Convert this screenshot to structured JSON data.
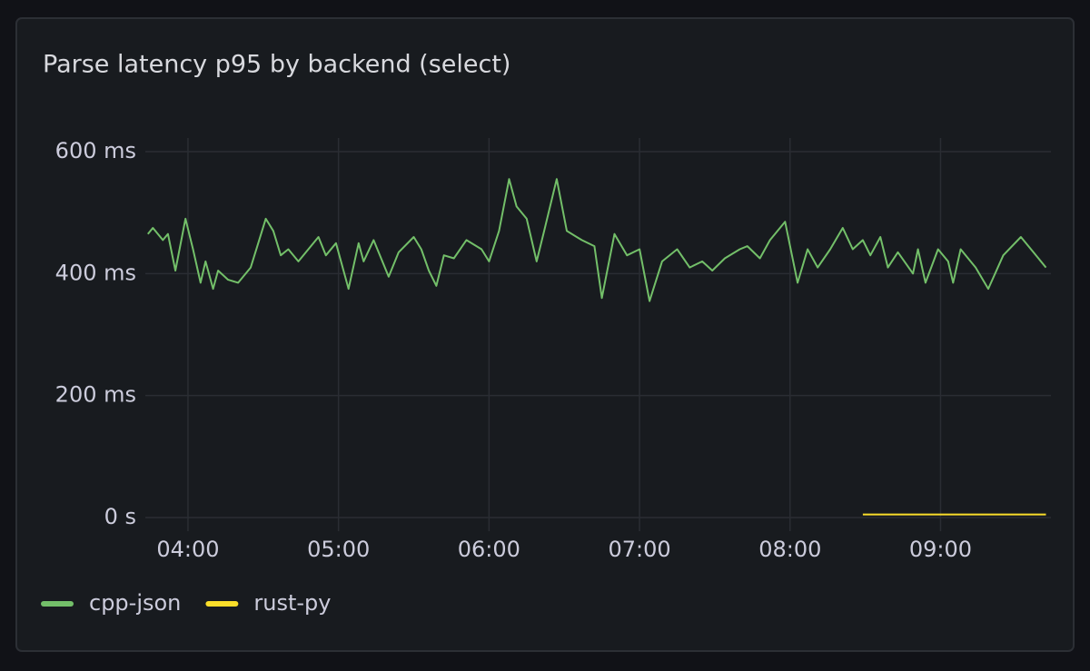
{
  "chart_data": {
    "type": "line",
    "title": "Parse latency p95 by backend (select)",
    "x": [
      "03:44",
      "03:46",
      "03:50",
      "03:52",
      "03:55",
      "03:59",
      "04:02",
      "04:05",
      "04:07",
      "04:10",
      "04:12",
      "04:16",
      "04:20",
      "04:25",
      "04:28",
      "04:31",
      "04:34",
      "04:37",
      "04:40",
      "04:44",
      "04:48",
      "04:52",
      "04:55",
      "04:59",
      "05:04",
      "05:08",
      "05:10",
      "05:14",
      "05:20",
      "05:24",
      "05:30",
      "05:33",
      "05:36",
      "05:39",
      "05:42",
      "05:46",
      "05:51",
      "05:57",
      "06:00",
      "06:04",
      "06:08",
      "06:11",
      "06:15",
      "06:19",
      "06:22",
      "06:27",
      "06:31",
      "06:37",
      "06:42",
      "06:45",
      "06:50",
      "06:55",
      "07:00",
      "07:04",
      "07:09",
      "07:15",
      "07:20",
      "07:25",
      "07:29",
      "07:34",
      "07:40",
      "07:43",
      "07:48",
      "07:52",
      "07:58",
      "08:03",
      "08:07",
      "08:11",
      "08:16",
      "08:21",
      "08:25",
      "08:29",
      "08:32",
      "08:36",
      "08:39",
      "08:43",
      "08:49",
      "08:51",
      "08:54",
      "08:59",
      "09:03",
      "09:05",
      "09:08",
      "09:14",
      "09:19",
      "09:25",
      "09:32",
      "09:37",
      "09:42"
    ],
    "series": [
      {
        "name": "cpp-json",
        "color": "#73bf69",
        "values": [
          465,
          475,
          455,
          465,
          405,
          490,
          440,
          385,
          420,
          375,
          405,
          390,
          385,
          410,
          450,
          490,
          470,
          430,
          440,
          420,
          440,
          460,
          430,
          450,
          375,
          450,
          420,
          455,
          395,
          435,
          460,
          440,
          405,
          380,
          430,
          425,
          455,
          440,
          420,
          470,
          555,
          510,
          490,
          420,
          470,
          555,
          470,
          455,
          445,
          360,
          465,
          430,
          440,
          355,
          420,
          440,
          410,
          420,
          405,
          425,
          440,
          445,
          425,
          455,
          485,
          385,
          440,
          410,
          440,
          475,
          440,
          455,
          430,
          460,
          410,
          435,
          400,
          440,
          385,
          440,
          420,
          385,
          440,
          410,
          375,
          430,
          460,
          435,
          410
        ]
      },
      {
        "name": "rust-py",
        "color": "#fade2a",
        "values": [
          null,
          null,
          null,
          null,
          null,
          null,
          null,
          null,
          null,
          null,
          null,
          null,
          null,
          null,
          null,
          null,
          null,
          null,
          null,
          null,
          null,
          null,
          null,
          null,
          null,
          null,
          null,
          null,
          null,
          null,
          null,
          null,
          null,
          null,
          null,
          null,
          null,
          null,
          null,
          null,
          null,
          null,
          null,
          null,
          null,
          null,
          null,
          null,
          null,
          null,
          null,
          null,
          null,
          null,
          null,
          null,
          null,
          null,
          null,
          null,
          null,
          null,
          null,
          null,
          null,
          null,
          null,
          null,
          null,
          null,
          null,
          5,
          5,
          5,
          5,
          5,
          5,
          5,
          5,
          5,
          5,
          5,
          5,
          5,
          5,
          5,
          5,
          5,
          5
        ]
      }
    ],
    "xlim": [
      "03:43",
      "09:44"
    ],
    "xticks": [
      "04:00",
      "05:00",
      "06:00",
      "07:00",
      "08:00",
      "09:00"
    ],
    "ylim": [
      0,
      600
    ],
    "yticks": [
      {
        "value": 0,
        "label": "0 s"
      },
      {
        "value": 200,
        "label": "200 ms"
      },
      {
        "value": 400,
        "label": "400 ms"
      },
      {
        "value": 600,
        "label": "600 ms"
      }
    ],
    "grid": true,
    "legend": "bottom-left"
  }
}
